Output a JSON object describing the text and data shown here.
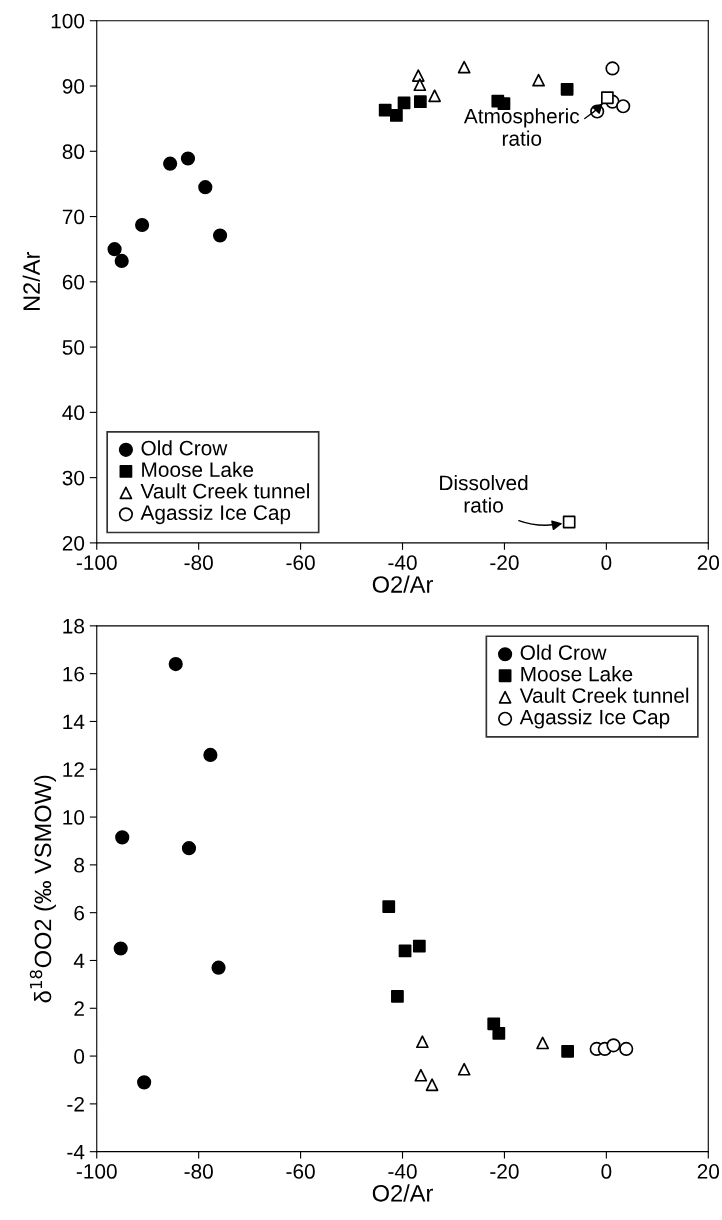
{
  "chart_data": [
    {
      "type": "scatter",
      "xlabel": "O2/Ar",
      "ylabel": "N2/Ar",
      "xlim": [
        -100,
        20
      ],
      "ylim": [
        20,
        100
      ],
      "xticks": [
        -100,
        -80,
        -60,
        -40,
        -20,
        0,
        20
      ],
      "yticks": [
        20,
        30,
        40,
        50,
        60,
        70,
        80,
        90,
        100
      ],
      "grid": false,
      "legend": "bottom left",
      "series": [
        {
          "name": "Old Crow",
          "color": "#000000",
          "marker": "circle",
          "x": [
            -96.5,
            -95.1,
            -91.1,
            -85.6,
            -82.1,
            -78.7,
            -75.8
          ],
          "values": [
            65.0,
            63.2,
            68.7,
            78.1,
            78.9,
            74.5,
            67.1
          ]
        },
        {
          "name": "Moose Lake",
          "color": "#000000",
          "marker": "square",
          "x": [
            -43.4,
            -41.2,
            -39.7,
            -36.5,
            -21.3,
            -20.1,
            -7.7
          ],
          "values": [
            86.3,
            85.5,
            87.4,
            87.6,
            87.7,
            87.3,
            89.5
          ]
        },
        {
          "name": "Vault Creek tunnel",
          "color": "#ffffff",
          "marker": "triangle",
          "x": [
            -36.9,
            -36.6,
            -33.7,
            -27.9,
            -13.3
          ],
          "values": [
            91.6,
            90.2,
            88.5,
            92.9,
            90.9
          ]
        },
        {
          "name": "Agassiz Ice Cap",
          "color": "#ffffff",
          "marker": "circle",
          "x": [
            1.2,
            -1.8,
            1.2,
            3.3
          ],
          "values": [
            92.7,
            86.1,
            87.6,
            86.9
          ]
        },
        {
          "color": "#ffffff",
          "marker": "square",
          "x": [
            0.2,
            -7.3
          ],
          "values": [
            88.2,
            23.2
          ]
        }
      ],
      "annotations": [
        {
          "text": "Atmospheric\nratio",
          "x": 0.2,
          "y": 88.2
        },
        {
          "text": "Dissolved\nratio",
          "x": -7.3,
          "y": 23.2
        }
      ]
    },
    {
      "type": "scatter",
      "xlabel": "O2/Ar",
      "ylabel": "δ$^{18}$OO2 (‰ VSMOW)",
      "xlim": [
        -100,
        20
      ],
      "ylim": [
        -4,
        18
      ],
      "xticks": [
        -100,
        -80,
        -60,
        -40,
        -20,
        0,
        20
      ],
      "yticks": [
        -4,
        -2,
        0,
        2,
        4,
        6,
        8,
        10,
        12,
        14,
        16,
        18
      ],
      "grid": false,
      "legend": "top right",
      "series": [
        {
          "name": "Old Crow",
          "color": "#000000",
          "marker": "circle",
          "x": [
            -84.5,
            -77.7,
            -95.0,
            -81.9,
            -95.3,
            -76.1,
            -90.7
          ],
          "values": [
            16.4,
            12.6,
            9.15,
            8.7,
            4.5,
            3.7,
            -1.1
          ]
        },
        {
          "name": "Moose Lake",
          "color": "#000000",
          "marker": "square",
          "x": [
            -42.7,
            -39.5,
            -36.7,
            -41.0,
            -22.1,
            -21.1,
            -7.6
          ],
          "values": [
            6.25,
            4.4,
            4.6,
            2.5,
            1.35,
            0.95,
            0.2
          ]
        },
        {
          "name": "Vault Creek tunnel",
          "color": "#ffffff",
          "marker": "triangle",
          "x": [
            -36.1,
            -36.4,
            -34.2,
            -27.9,
            -12.5
          ],
          "values": [
            0.6,
            -0.8,
            -1.2,
            -0.55,
            0.55
          ]
        },
        {
          "name": "Agassiz Ice Cap",
          "color": "#ffffff",
          "marker": "circle",
          "x": [
            -1.9,
            -0.3,
            1.4,
            3.9
          ],
          "values": [
            0.3,
            0.3,
            0.45,
            0.3
          ]
        }
      ]
    }
  ]
}
